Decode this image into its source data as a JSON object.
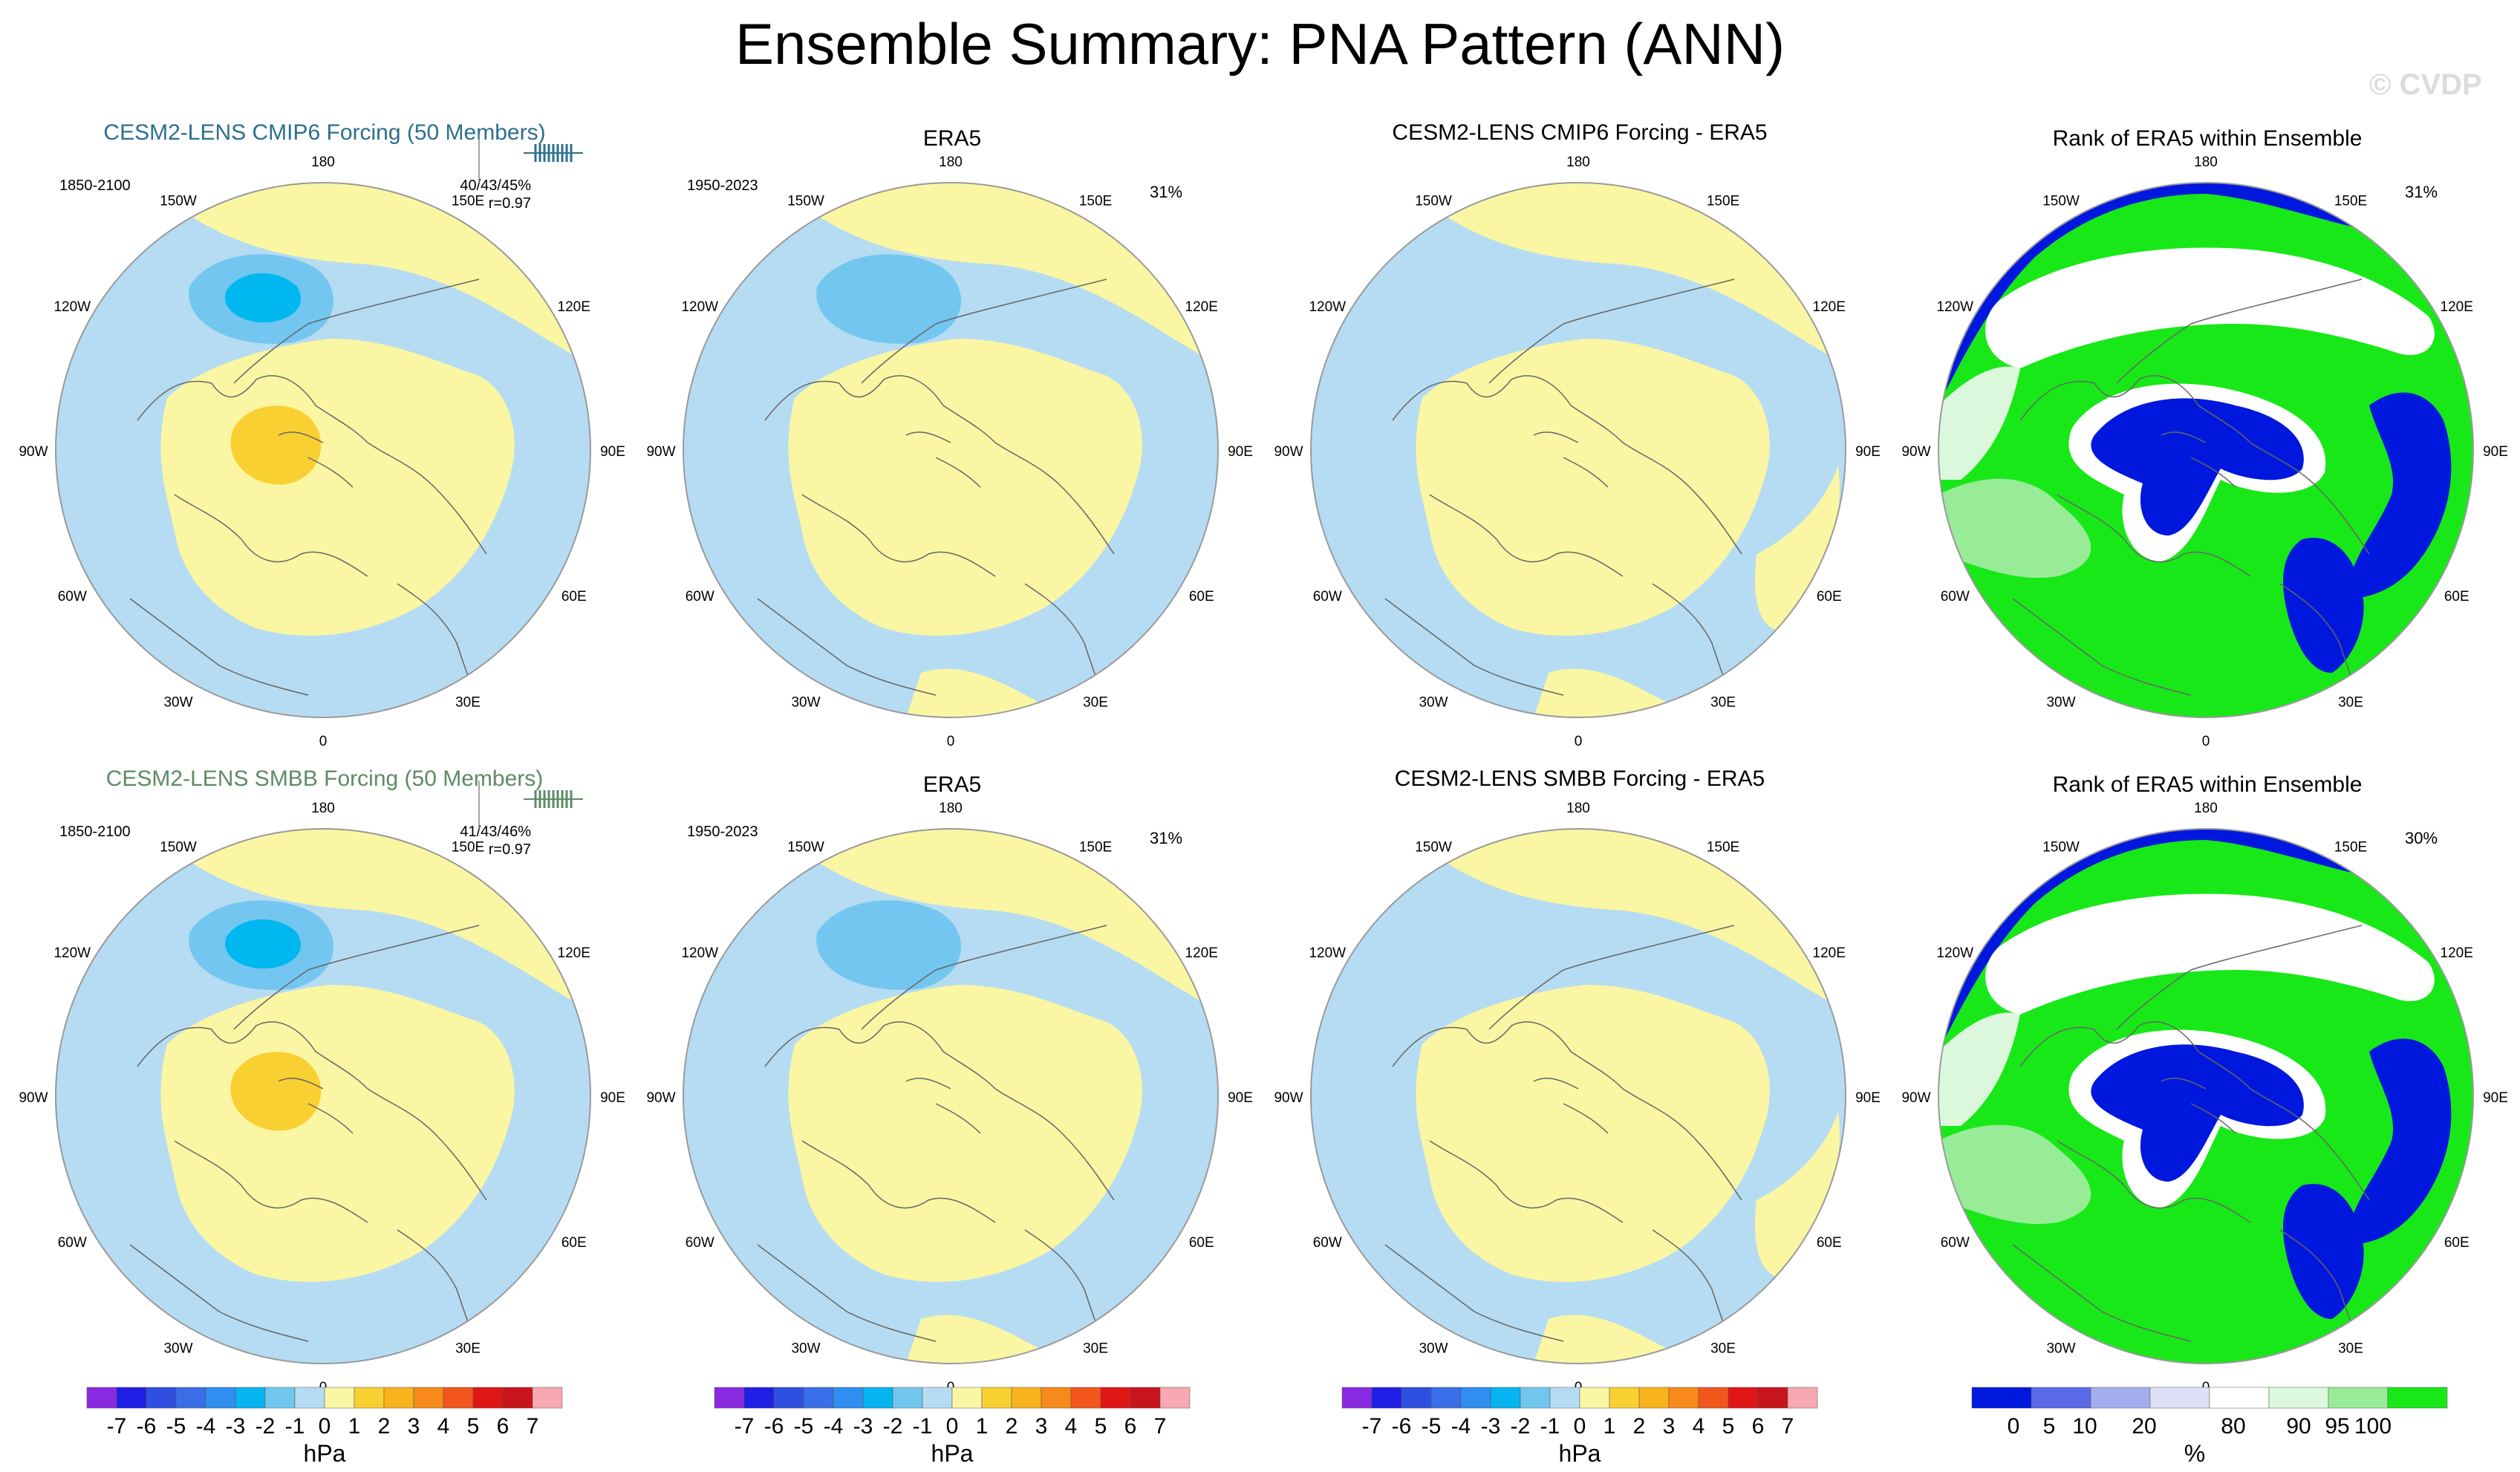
{
  "title": "Ensemble Summary: PNA Pattern (ANN)",
  "watermark": "© CVDP",
  "colors": {
    "ensemble_title_top": "#2b6f8e",
    "ensemble_title_bottom": "#5e8a66",
    "blue_light": "#b5dcf2",
    "blue_mid": "#73c6ef",
    "blue_strong": "#00b8f0",
    "yellow_light": "#fbf6a3",
    "yellow_mid": "#f8d032",
    "coastline": "#666666",
    "rank_low": "#0018dd",
    "rank_high": "#18e818"
  },
  "labels": {
    "lon": {
      "c180": "180",
      "w150": "150W",
      "e150": "150E",
      "w120": "120W",
      "e120": "120E",
      "w90": "90W",
      "e90": "90E",
      "w60": "60W",
      "e60": "60E",
      "w30": "30W",
      "e30": "30E",
      "c0": "0"
    }
  },
  "panels": {
    "ens1": {
      "title": "CESM2-LENS CMIP6 Forcing (50 Members)",
      "period": "1850-2100",
      "stats": "40/43/45%",
      "corr": "r=0.97"
    },
    "obs1": {
      "title": "ERA5",
      "period": "1950-2023",
      "pct": "31%"
    },
    "diff1": {
      "title": "CESM2-LENS CMIP6 Forcing - ERA5"
    },
    "rank1": {
      "title": "Rank of ERA5 within Ensemble",
      "pct": "31%"
    },
    "ens2": {
      "title": "CESM2-LENS SMBB Forcing (50 Members)",
      "period": "1850-2100",
      "stats": "41/43/46%",
      "corr": "r=0.97"
    },
    "obs2": {
      "title": "ERA5",
      "period": "1950-2023",
      "pct": "31%"
    },
    "diff2": {
      "title": "CESM2-LENS SMBB Forcing - ERA5"
    },
    "rank2": {
      "title": "Rank of ERA5 within Ensemble",
      "pct": "30%"
    }
  },
  "chart_data": {
    "type": "heatmap",
    "projection": "north polar stereographic",
    "variable": "sea level pressure PNA pattern regression",
    "hpa_colorbar": {
      "unit": "hPa",
      "tick_labels": [
        "-7",
        "-6",
        "-5",
        "-4",
        "-3",
        "-2",
        "-1",
        "0",
        "1",
        "2",
        "3",
        "4",
        "5",
        "6",
        "7"
      ],
      "levels": [
        -7,
        -6,
        -5,
        -4,
        -3,
        -2,
        -1,
        0,
        1,
        2,
        3,
        4,
        5,
        6,
        7
      ],
      "colors": [
        "#8a2be2",
        "#1f1fe6",
        "#2e4fe0",
        "#3a6ee8",
        "#2f8ef0",
        "#05b4f0",
        "#72c6ee",
        "#b5dcf2",
        "#fbf6a3",
        "#f8d032",
        "#f7b21c",
        "#f78a1a",
        "#f2561c",
        "#e01616",
        "#c8141c",
        "#f7a8b0"
      ]
    },
    "rank_colorbar": {
      "unit": "%",
      "tick_labels": [
        "0",
        "5",
        "10",
        "20",
        "80",
        "90",
        "95",
        "100"
      ],
      "levels": [
        0,
        5,
        10,
        20,
        80,
        90,
        95,
        100
      ],
      "colors": [
        "#0018dd",
        "#5a6ae8",
        "#a4aeee",
        "#dde0f6",
        "#ffffff",
        "#dcf8dc",
        "#98ec98",
        "#18e818"
      ]
    },
    "summary": {
      "cmip6": {
        "period": "1850-2100",
        "members": 50,
        "pct_variance": [
          40,
          43,
          45
        ],
        "pattern_correlation": 0.97
      },
      "smbb": {
        "period": "1850-2100",
        "members": 50,
        "pct_variance": [
          41,
          43,
          46
        ],
        "pattern_correlation": 0.97
      },
      "era5": {
        "period": "1950-2023",
        "pct_variance": 31
      },
      "rank_pct": [
        31,
        30
      ]
    }
  }
}
